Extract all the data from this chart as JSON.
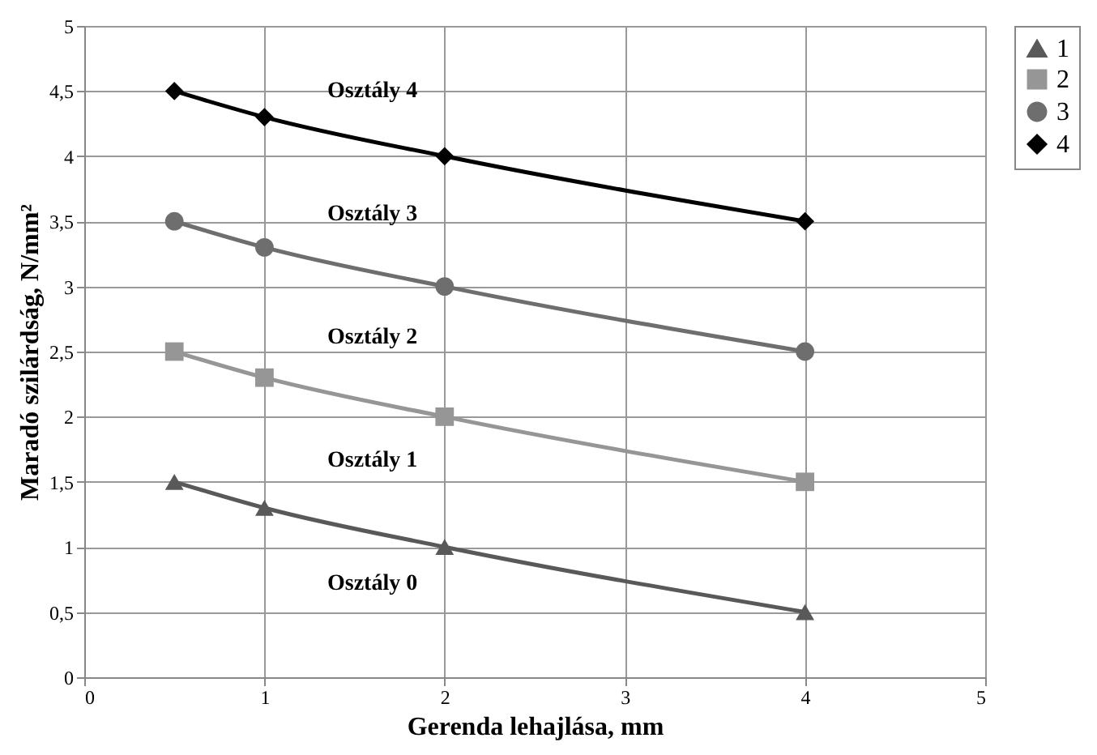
{
  "chart_data": {
    "type": "line",
    "xlabel": "Gerenda lehajlása, mm",
    "ylabel": "Maradó szilárdság, N/mm²",
    "x": [
      0.5,
      1,
      2,
      4
    ],
    "series": [
      {
        "name": "1",
        "color": "#595959",
        "marker": "triangle",
        "values": [
          1.5,
          1.3,
          1.0,
          0.5
        ]
      },
      {
        "name": "2",
        "color": "#969696",
        "marker": "square",
        "values": [
          2.5,
          2.3,
          2.0,
          1.5
        ]
      },
      {
        "name": "3",
        "color": "#6e6e6e",
        "marker": "circle",
        "values": [
          3.5,
          3.3,
          3.0,
          2.5
        ]
      },
      {
        "name": "4",
        "color": "#000000",
        "marker": "diamond",
        "values": [
          4.5,
          4.3,
          4.0,
          3.5
        ]
      }
    ],
    "xlim": [
      0,
      5
    ],
    "xticks": [
      0,
      1,
      2,
      3,
      4,
      5
    ],
    "ylim": [
      0,
      5
    ],
    "yticks": [
      0,
      {
        "value": 0.5,
        "label": "0,5"
      },
      1,
      {
        "value": 1.5,
        "label": "1,5"
      },
      2,
      {
        "value": 2.5,
        "label": "2,5"
      },
      3,
      {
        "value": 3.5,
        "label": "3,5"
      },
      4,
      {
        "value": 4.5,
        "label": "4,5"
      },
      5
    ],
    "annotations": [
      "Osztály 4",
      "Osztály 3",
      "Osztály 2",
      "Osztály 1",
      "Osztály 0"
    ],
    "grid": true,
    "legend": "right",
    "line_style": "solid"
  }
}
